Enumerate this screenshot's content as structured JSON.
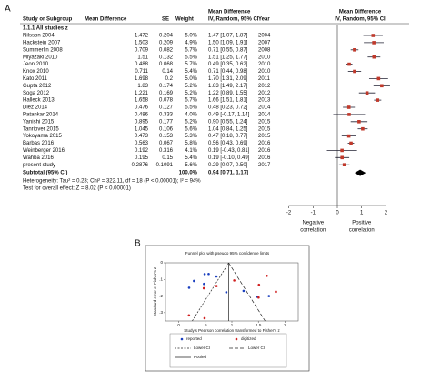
{
  "chart_data": [
    {
      "type": "forest",
      "panel": "A",
      "columns": [
        "Study or Subgroup",
        "Mean Difference",
        "SE",
        "Weight"
      ],
      "effect_header": [
        "Mean Difference",
        "IV, Random, 95% CI"
      ],
      "year_header": "Year",
      "plot_header": [
        "Mean Difference",
        "IV, Random, 95% CI"
      ],
      "subgroup": "1.1.1 All studies z",
      "rows": [
        {
          "study": "Nilsson 2004",
          "md": 1.472,
          "se": 0.204,
          "weight": "5.0%",
          "ci_label": "1.47 [1.07, 1.87]",
          "ci": [
            1.07,
            1.87
          ],
          "year": "2004"
        },
        {
          "study": "Hackstein 2007",
          "md": 1.503,
          "se": 0.209,
          "weight": "4.9%",
          "ci_label": "1.50 [1.09, 1.91]",
          "ci": [
            1.09,
            1.91
          ],
          "year": "2007"
        },
        {
          "study": "Summerlin 2008",
          "md": 0.709,
          "se": 0.082,
          "weight": "5.7%",
          "ci_label": "0.71 [0.55, 0.87]",
          "ci": [
            0.55,
            0.87
          ],
          "year": "2008"
        },
        {
          "study": "Miyazaki 2010",
          "md": 1.51,
          "se": 0.132,
          "weight": "5.5%",
          "ci_label": "1.51 [1.25, 1.77]",
          "ci": [
            1.25,
            1.77
          ],
          "year": "2010"
        },
        {
          "study": "Jeon 2010",
          "md": 0.488,
          "se": 0.068,
          "weight": "5.7%",
          "ci_label": "0.49 [0.35, 0.62]",
          "ci": [
            0.35,
            0.62
          ],
          "year": "2010"
        },
        {
          "study": "Knox 2010",
          "md": 0.711,
          "se": 0.14,
          "weight": "5.4%",
          "ci_label": "0.71 [0.44, 0.98]",
          "ci": [
            0.44,
            0.98
          ],
          "year": "2010"
        },
        {
          "study": "Kato 2011",
          "md": 1.698,
          "se": 0.2,
          "weight": "5.0%",
          "ci_label": "1.70 [1.31, 2.09]",
          "ci": [
            1.31,
            2.09
          ],
          "year": "2011"
        },
        {
          "study": "Gupta 2012",
          "md": 1.83,
          "se": 0.174,
          "weight": "5.2%",
          "ci_label": "1.83 [1.49, 2.17]",
          "ci": [
            1.49,
            2.17
          ],
          "year": "2012"
        },
        {
          "study": "Soga 2012",
          "md": 1.221,
          "se": 0.169,
          "weight": "5.2%",
          "ci_label": "1.22 [0.89, 1.55]",
          "ci": [
            0.89,
            1.55
          ],
          "year": "2012"
        },
        {
          "study": "Halleck 2013",
          "md": 1.658,
          "se": 0.078,
          "weight": "5.7%",
          "ci_label": "1.66 [1.51, 1.81]",
          "ci": [
            1.51,
            1.81
          ],
          "year": "2013"
        },
        {
          "study": "Diez 2014",
          "md": 0.476,
          "se": 0.127,
          "weight": "5.5%",
          "ci_label": "0.48 [0.23, 0.72]",
          "ci": [
            0.23,
            0.72
          ],
          "year": "2014"
        },
        {
          "study": "Patankar 2014",
          "md": 0.486,
          "se": 0.333,
          "weight": "4.0%",
          "ci_label": "0.49 [-0.17, 1.14]",
          "ci": [
            -0.17,
            1.14
          ],
          "year": "2014"
        },
        {
          "study": "Yanishi 2015",
          "md": 0.895,
          "se": 0.177,
          "weight": "5.2%",
          "ci_label": "0.90 [0.55, 1.24]",
          "ci": [
            0.55,
            1.24
          ],
          "year": "2015"
        },
        {
          "study": "Tanriover 2015",
          "md": 1.045,
          "se": 0.106,
          "weight": "5.6%",
          "ci_label": "1.04 [0.84, 1.25]",
          "ci": [
            0.84,
            1.25
          ],
          "year": "2015"
        },
        {
          "study": "Yokoyama 2015",
          "md": 0.473,
          "se": 0.153,
          "weight": "5.3%",
          "ci_label": "0.47 [0.18, 0.77]",
          "ci": [
            0.18,
            0.77
          ],
          "year": "2015"
        },
        {
          "study": "Barbas 2016",
          "md": 0.563,
          "se": 0.067,
          "weight": "5.8%",
          "ci_label": "0.56 [0.43, 0.69]",
          "ci": [
            0.43,
            0.69
          ],
          "year": "2016"
        },
        {
          "study": "Weinberger 2016",
          "md": 0.192,
          "se": 0.316,
          "weight": "4.1%",
          "ci_label": "0.19 [-0.43, 0.81]",
          "ci": [
            -0.43,
            0.81
          ],
          "year": "2016"
        },
        {
          "study": "Wahba 2016",
          "md": 0.195,
          "se": 0.15,
          "weight": "5.4%",
          "ci_label": "0.19 [-0.10, 0.49]",
          "ci": [
            -0.1,
            0.49
          ],
          "year": "2016"
        },
        {
          "study": "present study",
          "md": 0.2876,
          "se": 0.1091,
          "weight": "5.6%",
          "ci_label": "0.29 [0.07, 0.50]",
          "ci": [
            0.07,
            0.5
          ],
          "year": "2017"
        }
      ],
      "subtotal": {
        "label": "Subtotal (95% CI)",
        "weight": "100.0%",
        "ci_label": "0.94 [0.71, 1.17]",
        "estimate": 0.94,
        "ci": [
          0.71,
          1.17
        ]
      },
      "heterogeneity": "Heterogeneity: Tau² = 0.23; Chi² = 322.11, df = 18 (P < 0.00001); I² = 94%",
      "overall": "Test for overall effect: Z = 8.02 (P < 0.00001)",
      "xlim": [
        -2,
        2
      ],
      "xticks": [
        -2,
        -1,
        0,
        1,
        2
      ],
      "left_label": [
        "Negative",
        "correlation"
      ],
      "right_label": [
        "Positive",
        "correlation"
      ],
      "point_color": "#c0392b"
    },
    {
      "type": "funnel",
      "panel": "B",
      "title": "Funnel plot with pseudo 95% confidence limits",
      "ylabel": "Standard error of Fisher's z",
      "xlabel": "Study's Pearson correlation transformed to Fisher's z",
      "xlim": [
        -0.25,
        2.25
      ],
      "xticks": [
        0,
        {
          "value": 0.5,
          "label": ".5"
        },
        1,
        {
          "value": 1.5,
          "label": "1.5"
        },
        2
      ],
      "ylim": [
        0,
        0.35
      ],
      "yticks": [
        0,
        {
          "value": 0.1,
          "label": ".1"
        },
        {
          "value": 0.2,
          "label": ".2"
        },
        {
          "value": 0.3,
          "label": ".3"
        }
      ],
      "series": [
        {
          "name": "reported",
          "color": "#1a3fbf",
          "x": [
            1.472,
            0.709,
            0.488,
            1.698,
            1.221,
            0.476,
            0.895,
            0.563,
            0.195,
            0.2876
          ],
          "y": [
            0.204,
            0.082,
            0.068,
            0.2,
            0.169,
            0.127,
            0.177,
            0.067,
            0.15,
            0.1091
          ]
        },
        {
          "name": "digitized",
          "color": "#d02020",
          "x": [
            1.503,
            1.51,
            0.711,
            1.83,
            1.658,
            0.486,
            1.045,
            0.473,
            0.192
          ],
          "y": [
            0.209,
            0.132,
            0.14,
            0.174,
            0.078,
            0.333,
            0.106,
            0.153,
            0.316
          ]
        }
      ],
      "lines": [
        {
          "name": "Lower CI",
          "dash": "2,1.5",
          "x": [
            0.94,
            0.254
          ],
          "y": [
            0,
            0.35
          ]
        },
        {
          "name": "Lower CI",
          "dash": "4,2",
          "x": [
            0.94,
            1.626
          ],
          "y": [
            0,
            0.35
          ]
        },
        {
          "name": "Pooled",
          "dash": "none",
          "x": [
            0.94,
            0.94
          ],
          "y": [
            0,
            0.35
          ]
        }
      ]
    }
  ]
}
